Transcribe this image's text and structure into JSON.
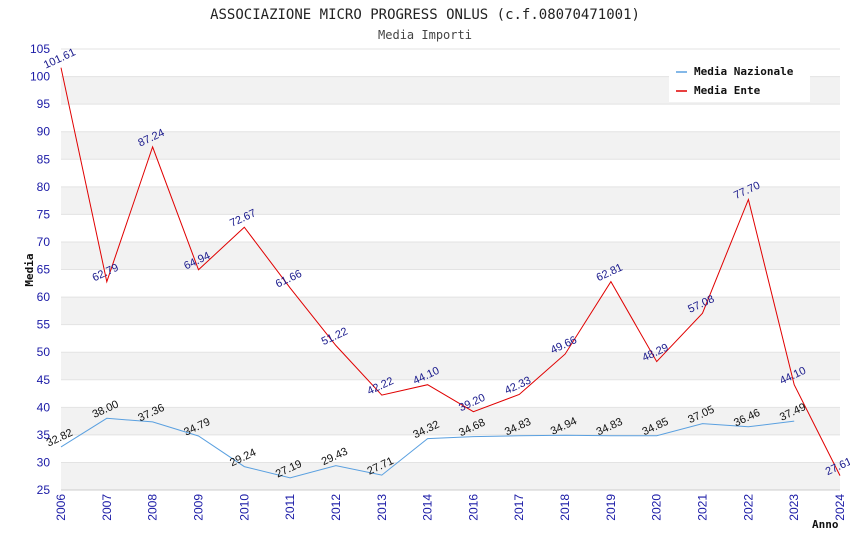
{
  "chart_data": {
    "type": "line",
    "title": "ASSOCIAZIONE MICRO PROGRESS ONLUS (c.f.08070471001)",
    "subtitle": "Media Importi",
    "xlabel": "Anno",
    "ylabel": "Media",
    "ylim": [
      25,
      105
    ],
    "yticks": [
      25,
      30,
      35,
      40,
      45,
      50,
      55,
      60,
      65,
      70,
      75,
      80,
      85,
      90,
      95,
      100,
      105
    ],
    "x": [
      "2006",
      "2007",
      "2008",
      "2009",
      "2010",
      "2011",
      "2012",
      "2013",
      "2014",
      "2016",
      "2017",
      "2018",
      "2019",
      "2020",
      "2021",
      "2022",
      "2023",
      "2024"
    ],
    "grid": "horizontal bands",
    "legend_position": "top-right",
    "series": [
      {
        "name": "Media Nazionale",
        "color": "#5aa0e0",
        "label_color": "#111111",
        "values": [
          32.82,
          38.0,
          37.36,
          34.79,
          29.24,
          27.19,
          29.43,
          27.71,
          34.32,
          34.68,
          34.83,
          34.94,
          34.83,
          34.85,
          37.05,
          36.46,
          37.49,
          null
        ],
        "labels": [
          "32.82",
          "38.00",
          "37.36",
          "34.79",
          "29.24",
          "27.19",
          "29.43",
          "27.71",
          "34.32",
          "34.68",
          "34.83",
          "34.94",
          "34.83",
          "34.85",
          "37.05",
          "36.46",
          "37.49",
          null
        ]
      },
      {
        "name": "Media Ente",
        "color": "#e00000",
        "label_color": "#1a1a8c",
        "values": [
          101.61,
          62.79,
          87.24,
          64.94,
          72.67,
          61.66,
          51.22,
          42.22,
          44.1,
          39.2,
          42.33,
          49.66,
          62.81,
          48.29,
          57.08,
          77.7,
          44.1,
          27.61
        ],
        "labels": [
          "101.61",
          "62.79",
          "87.24",
          "64.94",
          "72.67",
          "61.66",
          "51.22",
          "42.22",
          "44.10",
          "39.20",
          "42.33",
          "49.66",
          "62.81",
          "48.29",
          "57.08",
          "77.70",
          "44.10",
          "27.61"
        ]
      }
    ]
  }
}
